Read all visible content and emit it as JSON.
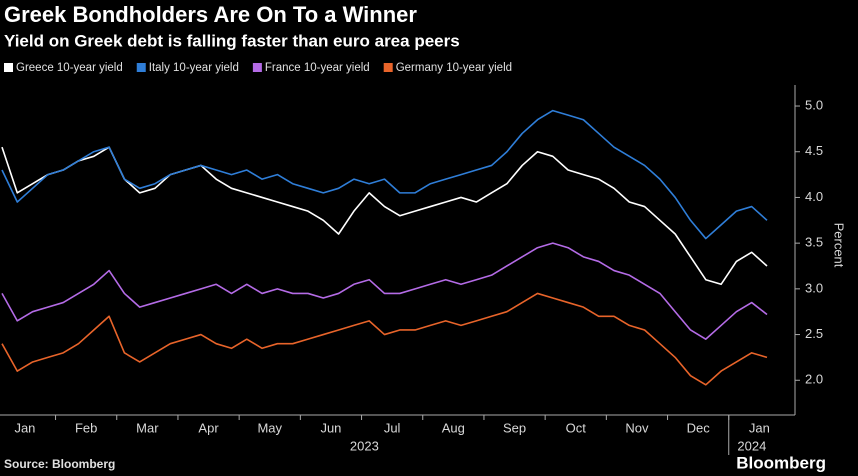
{
  "chart_data": {
    "type": "line",
    "title": "Greek Bondholders Are On To a Winner",
    "subtitle": "Yield on Greek debt is falling faster than euro area peers",
    "y_label": "Percent",
    "source": "Source: Bloomberg",
    "brand": "Bloomberg",
    "years": [
      "2023",
      "2024"
    ],
    "categories": [
      "Jan",
      null,
      null,
      null,
      "Feb",
      null,
      null,
      null,
      "Mar",
      null,
      null,
      null,
      "Apr",
      null,
      null,
      null,
      "May",
      null,
      null,
      null,
      "Jun",
      null,
      null,
      null,
      "Jul",
      null,
      null,
      null,
      "Aug",
      null,
      null,
      null,
      "Sep",
      null,
      null,
      null,
      "Oct",
      null,
      null,
      null,
      "Nov",
      null,
      null,
      null,
      "Dec",
      null,
      null,
      null,
      "Jan",
      null,
      null
    ],
    "series": [
      {
        "name": "Greece 10-year yield",
        "color": "#ffffff",
        "values": [
          4.55,
          4.05,
          4.15,
          4.25,
          4.3,
          4.4,
          4.45,
          4.55,
          4.2,
          4.05,
          4.1,
          4.25,
          4.3,
          4.35,
          4.2,
          4.1,
          4.05,
          4.0,
          3.95,
          3.9,
          3.85,
          3.75,
          3.6,
          3.85,
          4.05,
          3.9,
          3.8,
          3.85,
          3.9,
          3.95,
          4.0,
          3.95,
          4.05,
          4.15,
          4.35,
          4.5,
          4.45,
          4.3,
          4.25,
          4.2,
          4.1,
          3.95,
          3.9,
          3.75,
          3.6,
          3.35,
          3.1,
          3.05,
          3.3,
          3.4,
          3.25
        ]
      },
      {
        "name": "Italy 10-year yield",
        "color": "#2f7ed8",
        "values": [
          4.3,
          3.95,
          4.1,
          4.25,
          4.3,
          4.4,
          4.5,
          4.55,
          4.2,
          4.1,
          4.15,
          4.25,
          4.3,
          4.35,
          4.3,
          4.25,
          4.3,
          4.2,
          4.25,
          4.15,
          4.1,
          4.05,
          4.1,
          4.2,
          4.15,
          4.2,
          4.05,
          4.05,
          4.15,
          4.2,
          4.25,
          4.3,
          4.35,
          4.5,
          4.7,
          4.85,
          4.95,
          4.9,
          4.85,
          4.7,
          4.55,
          4.45,
          4.35,
          4.2,
          4.0,
          3.75,
          3.55,
          3.7,
          3.85,
          3.9,
          3.75
        ]
      },
      {
        "name": "France 10-year yield",
        "color": "#b46be6",
        "values": [
          2.95,
          2.65,
          2.75,
          2.8,
          2.85,
          2.95,
          3.05,
          3.2,
          2.95,
          2.8,
          2.85,
          2.9,
          2.95,
          3.0,
          3.05,
          2.95,
          3.05,
          2.95,
          3.0,
          2.95,
          2.95,
          2.9,
          2.95,
          3.05,
          3.1,
          2.95,
          2.95,
          3.0,
          3.05,
          3.1,
          3.05,
          3.1,
          3.15,
          3.25,
          3.35,
          3.45,
          3.5,
          3.45,
          3.35,
          3.3,
          3.2,
          3.15,
          3.05,
          2.95,
          2.75,
          2.55,
          2.45,
          2.6,
          2.75,
          2.85,
          2.72
        ]
      },
      {
        "name": "Germany 10-year yield",
        "color": "#e8642a",
        "values": [
          2.4,
          2.1,
          2.2,
          2.25,
          2.3,
          2.4,
          2.55,
          2.7,
          2.3,
          2.2,
          2.3,
          2.4,
          2.45,
          2.5,
          2.4,
          2.35,
          2.45,
          2.35,
          2.4,
          2.4,
          2.45,
          2.5,
          2.55,
          2.6,
          2.65,
          2.5,
          2.55,
          2.55,
          2.6,
          2.65,
          2.6,
          2.65,
          2.7,
          2.75,
          2.85,
          2.95,
          2.9,
          2.85,
          2.8,
          2.7,
          2.7,
          2.6,
          2.55,
          2.4,
          2.25,
          2.05,
          1.95,
          2.1,
          2.2,
          2.3,
          2.25
        ]
      }
    ],
    "ylim": [
      1.62,
      5.23
    ],
    "yticks": [
      {
        "value": 2,
        "label": "2.0"
      },
      {
        "value": 2.5,
        "label": "2.5"
      },
      {
        "value": 3,
        "label": "3.0"
      },
      {
        "value": 3.5,
        "label": "3.5"
      },
      {
        "value": 4,
        "label": "4.0"
      },
      {
        "value": 4.5,
        "label": "4.5"
      },
      {
        "value": 5,
        "label": "5.0"
      }
    ]
  }
}
